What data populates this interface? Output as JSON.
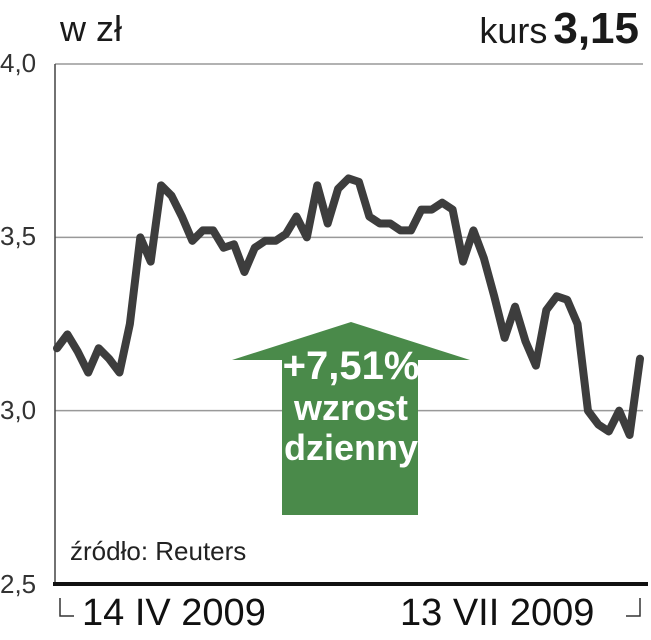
{
  "header": {
    "unit": "w zł",
    "kurs_label": "kurs",
    "kurs_value": "3,15"
  },
  "source": "źródło: Reuters",
  "badge": {
    "change": "+7,51%",
    "line1": "wzrost",
    "line2": "dzienny",
    "color": "#4a8a4a"
  },
  "chart_data": {
    "type": "line",
    "title": "",
    "xlabel": "",
    "ylabel": "w zł",
    "ylim": [
      2.5,
      4.0
    ],
    "yticks": [
      "4,0",
      "3,5",
      "3,0",
      "2,5"
    ],
    "ytick_values": [
      4.0,
      3.5,
      3.0,
      2.5
    ],
    "xtick_labels": [
      "14 IV 2009",
      "13 VII 2009"
    ],
    "grid": true,
    "line_color": "#3d3d3d",
    "series": [
      {
        "values": [
          3.18,
          3.22,
          3.17,
          3.11,
          3.18,
          3.15,
          3.11,
          3.25,
          3.5,
          3.43,
          3.65,
          3.62,
          3.56,
          3.49,
          3.52,
          3.52,
          3.47,
          3.48,
          3.4,
          3.47,
          3.49,
          3.49,
          3.51,
          3.56,
          3.5,
          3.65,
          3.54,
          3.64,
          3.67,
          3.66,
          3.56,
          3.54,
          3.54,
          3.52,
          3.52,
          3.58,
          3.58,
          3.6,
          3.58,
          3.43,
          3.52,
          3.44,
          3.33,
          3.21,
          3.3,
          3.2,
          3.13,
          3.29,
          3.33,
          3.32,
          3.25,
          3.0,
          2.96,
          2.94,
          3.0,
          2.93,
          3.15
        ]
      }
    ]
  }
}
